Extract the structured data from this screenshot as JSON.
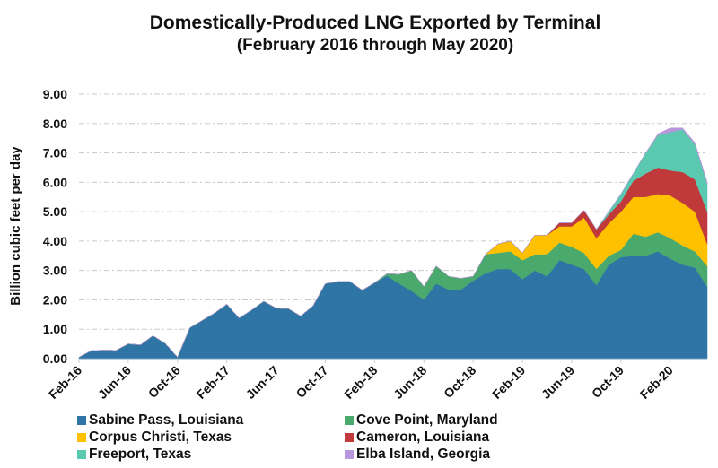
{
  "chart_data": {
    "type": "area",
    "stacked": true,
    "title": "Domestically-Produced LNG Exported by Terminal",
    "subtitle": "(February 2016 through May 2020)",
    "xlabel": "",
    "ylabel": "Billion cubic feet per day",
    "ylim": [
      0,
      9
    ],
    "yticks": [
      "0.00",
      "1.00",
      "2.00",
      "3.00",
      "4.00",
      "5.00",
      "6.00",
      "7.00",
      "8.00",
      "9.00"
    ],
    "xtick_labels": [
      "Feb-16",
      "Jun-16",
      "Oct-16",
      "Feb-17",
      "Jun-17",
      "Oct-17",
      "Feb-18",
      "Jun-18",
      "Oct-18",
      "Feb-19",
      "Jun-19",
      "Oct-19",
      "Feb-20"
    ],
    "xtick_every_months": 4,
    "grid": "horizontal dashed",
    "legend_position": "bottom",
    "x": [
      "Feb-16",
      "Mar-16",
      "Apr-16",
      "May-16",
      "Jun-16",
      "Jul-16",
      "Aug-16",
      "Sep-16",
      "Oct-16",
      "Nov-16",
      "Dec-16",
      "Jan-17",
      "Feb-17",
      "Mar-17",
      "Apr-17",
      "May-17",
      "Jun-17",
      "Jul-17",
      "Aug-17",
      "Sep-17",
      "Oct-17",
      "Nov-17",
      "Dec-17",
      "Jan-18",
      "Feb-18",
      "Mar-18",
      "Apr-18",
      "May-18",
      "Jun-18",
      "Jul-18",
      "Aug-18",
      "Sep-18",
      "Oct-18",
      "Nov-18",
      "Dec-18",
      "Jan-19",
      "Feb-19",
      "Mar-19",
      "Apr-19",
      "May-19",
      "Jun-19",
      "Jul-19",
      "Aug-19",
      "Sep-19",
      "Oct-19",
      "Nov-19",
      "Dec-19",
      "Jan-20",
      "Feb-20",
      "Mar-20",
      "Apr-20",
      "May-20"
    ],
    "series": [
      {
        "name": "Sabine Pass, Louisiana",
        "color": "#2E75A6",
        "values": [
          0.05,
          0.27,
          0.29,
          0.28,
          0.5,
          0.47,
          0.78,
          0.52,
          0.05,
          1.05,
          1.3,
          1.55,
          1.85,
          1.38,
          1.65,
          1.95,
          1.72,
          1.7,
          1.45,
          1.8,
          2.55,
          2.62,
          2.62,
          2.33,
          2.58,
          2.82,
          2.55,
          2.3,
          2.0,
          2.55,
          2.35,
          2.35,
          2.65,
          2.9,
          3.05,
          3.05,
          2.7,
          3.0,
          2.8,
          3.35,
          3.2,
          3.05,
          2.5,
          3.2,
          3.45,
          3.5,
          3.5,
          3.65,
          3.4,
          3.2,
          3.1,
          2.45
        ]
      },
      {
        "name": "Cove Point, Maryland",
        "color": "#4AAA6E",
        "values": [
          0,
          0,
          0,
          0,
          0,
          0,
          0,
          0,
          0,
          0,
          0,
          0,
          0,
          0,
          0,
          0,
          0,
          0,
          0,
          0,
          0,
          0,
          0,
          0,
          0,
          0.07,
          0.32,
          0.7,
          0.45,
          0.6,
          0.45,
          0.38,
          0.15,
          0.65,
          0.55,
          0.6,
          0.65,
          0.55,
          0.75,
          0.6,
          0.6,
          0.55,
          0.55,
          0.3,
          0.25,
          0.75,
          0.65,
          0.65,
          0.7,
          0.65,
          0.55,
          0.7
        ]
      },
      {
        "name": "Corpus Christi, Texas",
        "color": "#FFC000",
        "values": [
          0,
          0,
          0,
          0,
          0,
          0,
          0,
          0,
          0,
          0,
          0,
          0,
          0,
          0,
          0,
          0,
          0,
          0,
          0,
          0,
          0,
          0,
          0,
          0,
          0,
          0,
          0,
          0,
          0,
          0,
          0,
          0,
          0,
          0,
          0.3,
          0.35,
          0.25,
          0.65,
          0.65,
          0.55,
          0.7,
          1.2,
          1.05,
          1.1,
          1.3,
          1.25,
          1.35,
          1.3,
          1.45,
          1.45,
          1.35,
          0.75
        ]
      },
      {
        "name": "Cameron, Louisiana",
        "color": "#C0393B",
        "values": [
          0,
          0,
          0,
          0,
          0,
          0,
          0,
          0,
          0,
          0,
          0,
          0,
          0,
          0,
          0,
          0,
          0,
          0,
          0,
          0,
          0,
          0,
          0,
          0,
          0,
          0,
          0,
          0,
          0,
          0,
          0,
          0,
          0,
          0,
          0,
          0,
          0,
          0,
          0,
          0.12,
          0.12,
          0.25,
          0.3,
          0.3,
          0.35,
          0.55,
          0.8,
          0.9,
          0.85,
          1.05,
          1.1,
          1.1
        ]
      },
      {
        "name": "Freeport, Texas",
        "color": "#5BC8B0",
        "values": [
          0,
          0,
          0,
          0,
          0,
          0,
          0,
          0,
          0,
          0,
          0,
          0,
          0,
          0,
          0,
          0,
          0,
          0,
          0,
          0,
          0,
          0,
          0,
          0,
          0,
          0,
          0,
          0,
          0,
          0,
          0,
          0,
          0,
          0,
          0,
          0,
          0,
          0,
          0,
          0,
          0,
          0,
          0,
          0.1,
          0.25,
          0.25,
          0.7,
          1.1,
          1.3,
          1.45,
          1.2,
          0.95
        ]
      },
      {
        "name": "Elba Island, Georgia",
        "color": "#B896DB",
        "values": [
          0,
          0,
          0,
          0,
          0,
          0,
          0,
          0,
          0,
          0,
          0,
          0,
          0,
          0,
          0,
          0,
          0,
          0,
          0,
          0,
          0,
          0,
          0,
          0,
          0,
          0,
          0,
          0,
          0,
          0,
          0,
          0,
          0,
          0,
          0,
          0,
          0,
          0,
          0,
          0,
          0,
          0,
          0,
          0,
          0,
          0,
          0,
          0.05,
          0.15,
          0.05,
          0.05,
          0.05
        ]
      }
    ]
  }
}
